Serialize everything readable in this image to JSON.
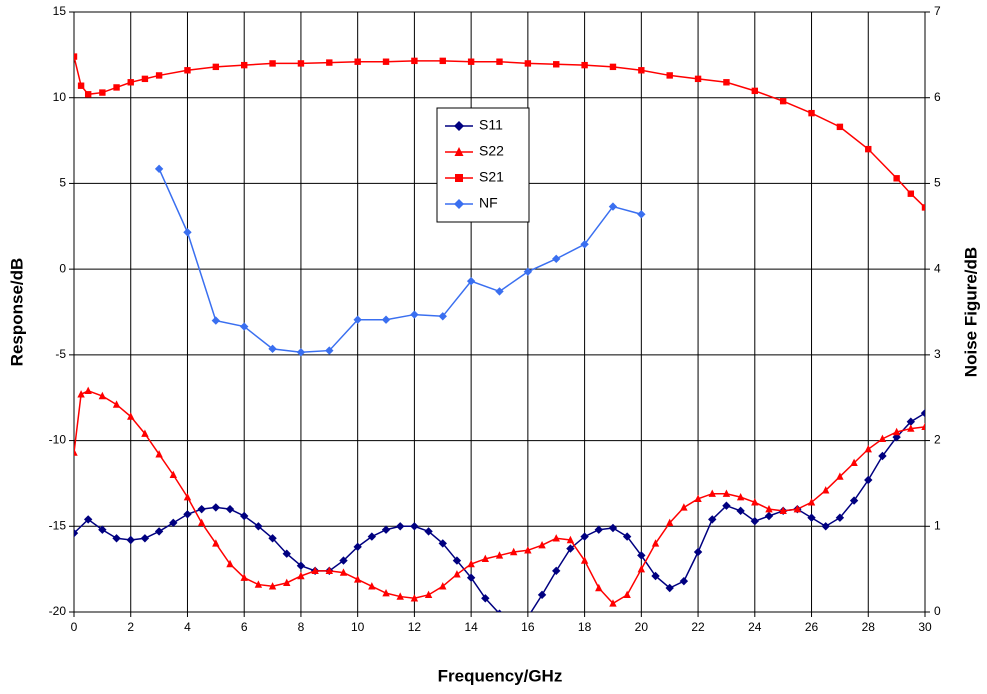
{
  "chart_data": {
    "type": "line",
    "x_label": "Frequency/GHz",
    "y_label": "Response/dB",
    "y2_label": "Noise Figure/dB",
    "xlim": [
      0,
      30
    ],
    "xticks": [
      0,
      2,
      4,
      6,
      8,
      10,
      12,
      14,
      16,
      18,
      20,
      22,
      24,
      26,
      28,
      30
    ],
    "ylim": [
      -20,
      15
    ],
    "yticks": [
      -20,
      -15,
      -10,
      -5,
      0,
      5,
      10,
      15
    ],
    "y2lim": [
      0,
      7
    ],
    "y2ticks": [
      0,
      1,
      2,
      3,
      4,
      5,
      6,
      7
    ],
    "grid": true,
    "legend": "center",
    "series": [
      {
        "name": "S11",
        "color": "#000080",
        "marker": "diamond",
        "x": [
          0,
          0.5,
          1,
          1.5,
          2,
          2.5,
          3,
          3.5,
          4,
          4.5,
          5,
          5.5,
          6,
          6.5,
          7,
          7.5,
          8,
          8.5,
          9,
          9.5,
          10,
          10.5,
          11,
          11.5,
          12,
          12.5,
          13,
          13.5,
          14,
          14.5,
          15,
          15.5,
          16,
          16.5,
          17,
          17.5,
          18,
          18.5,
          19,
          19.5,
          20,
          20.5,
          21,
          21.5,
          22,
          22.5,
          23,
          23.5,
          24,
          24.5,
          25,
          25.5,
          26,
          26.5,
          27,
          27.5,
          28,
          28.5,
          29,
          29.5,
          30
        ],
        "values": [
          -15.4,
          -14.6,
          -15.2,
          -15.7,
          -15.8,
          -15.7,
          -15.3,
          -14.8,
          -14.3,
          -14.0,
          -13.9,
          -14.0,
          -14.4,
          -15.0,
          -15.7,
          -16.6,
          -17.3,
          -17.6,
          -17.6,
          -17.0,
          -16.2,
          -15.6,
          -15.2,
          -15.0,
          -15.0,
          -15.3,
          -16.0,
          -17.0,
          -18.0,
          -19.2,
          -20.1,
          -20.8,
          -20.3,
          -19.0,
          -17.6,
          -16.3,
          -15.6,
          -15.2,
          -15.1,
          -15.6,
          -16.7,
          -17.9,
          -18.6,
          -18.2,
          -16.5,
          -14.6,
          -13.8,
          -14.1,
          -14.7,
          -14.4,
          -14.1,
          -14.0,
          -14.5,
          -15.0,
          -14.5,
          -13.5,
          -12.3,
          -10.9,
          -9.8,
          -8.9,
          -8.4
        ]
      },
      {
        "name": "S22",
        "color": "#ff0000",
        "marker": "triangle",
        "x": [
          0,
          0.25,
          0.5,
          1,
          1.5,
          2,
          2.5,
          3,
          3.5,
          4,
          4.5,
          5,
          5.5,
          6,
          6.5,
          7,
          7.5,
          8,
          8.5,
          9,
          9.5,
          10,
          10.5,
          11,
          11.5,
          12,
          12.5,
          13,
          13.5,
          14,
          14.5,
          15,
          15.5,
          16,
          16.5,
          17,
          17.5,
          18,
          18.5,
          19,
          19.5,
          20,
          20.5,
          21,
          21.5,
          22,
          22.5,
          23,
          23.5,
          24,
          24.5,
          25,
          25.5,
          26,
          26.5,
          27,
          27.5,
          28,
          28.5,
          29,
          29.5,
          30
        ],
        "values": [
          -10.7,
          -7.3,
          -7.1,
          -7.4,
          -7.9,
          -8.6,
          -9.6,
          -10.8,
          -12.0,
          -13.3,
          -14.8,
          -16.0,
          -17.2,
          -18.0,
          -18.4,
          -18.5,
          -18.3,
          -17.9,
          -17.6,
          -17.6,
          -17.7,
          -18.1,
          -18.5,
          -18.9,
          -19.1,
          -19.2,
          -19.0,
          -18.5,
          -17.8,
          -17.2,
          -16.9,
          -16.7,
          -16.5,
          -16.4,
          -16.1,
          -15.7,
          -15.8,
          -17.0,
          -18.6,
          -19.5,
          -19.0,
          -17.5,
          -16.0,
          -14.8,
          -13.9,
          -13.4,
          -13.1,
          -13.1,
          -13.3,
          -13.6,
          -14.0,
          -14.1,
          -14.0,
          -13.6,
          -12.9,
          -12.1,
          -11.3,
          -10.5,
          -9.9,
          -9.5,
          -9.3,
          -9.2
        ]
      },
      {
        "name": "S21",
        "color": "#ff0000",
        "marker": "square",
        "x": [
          0,
          0.25,
          0.5,
          1,
          1.5,
          2,
          2.5,
          3,
          4,
          5,
          6,
          7,
          8,
          9,
          10,
          11,
          12,
          13,
          14,
          15,
          16,
          17,
          18,
          19,
          20,
          21,
          22,
          23,
          24,
          25,
          26,
          27,
          28,
          29,
          29.5,
          30
        ],
        "values": [
          12.4,
          10.7,
          10.2,
          10.3,
          10.6,
          10.9,
          11.1,
          11.3,
          11.6,
          11.8,
          11.9,
          12.0,
          12.0,
          12.05,
          12.1,
          12.1,
          12.15,
          12.15,
          12.1,
          12.1,
          12.0,
          11.95,
          11.9,
          11.8,
          11.6,
          11.3,
          11.1,
          10.9,
          10.4,
          9.8,
          9.1,
          8.3,
          7.0,
          5.3,
          4.4,
          3.6
        ]
      },
      {
        "name": "NF",
        "color": "#3a6ff0",
        "marker": "diamond",
        "axis": "y2",
        "x": [
          3,
          4,
          5,
          6,
          7,
          8,
          9,
          10,
          11,
          12,
          13,
          14,
          15,
          16,
          17,
          18,
          19,
          20
        ],
        "values": [
          5.17,
          4.43,
          3.4,
          3.33,
          3.07,
          3.03,
          3.05,
          3.41,
          3.41,
          3.47,
          3.45,
          3.86,
          3.74,
          3.97,
          4.12,
          4.29,
          4.73,
          4.64
        ]
      }
    ]
  }
}
